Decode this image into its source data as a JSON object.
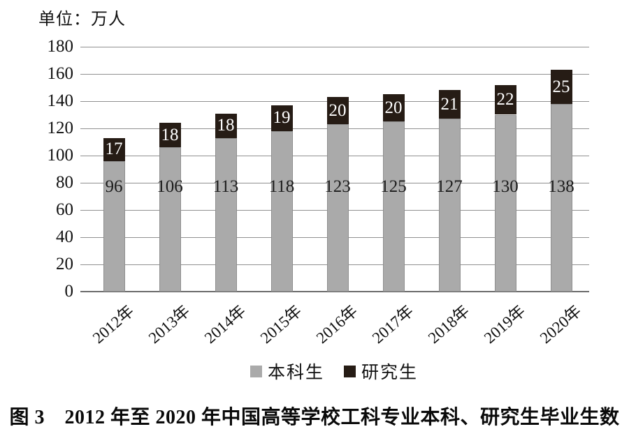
{
  "figure": {
    "unit_label": "单位：万人",
    "caption": "图 3　2012 年至 2020 年中国高等学校工科专业本科、研究生毕业生数"
  },
  "chart_data": {
    "type": "stacked-bar",
    "title": "",
    "xlabel": "",
    "ylabel": "单位：万人",
    "categories": [
      "2012年",
      "2013年",
      "2014年",
      "2015年",
      "2016年",
      "2017年",
      "2018年",
      "2019年",
      "2020年"
    ],
    "series": [
      {
        "name": "本科生",
        "values": [
          96,
          106,
          113,
          118,
          123,
          125,
          127,
          130,
          138
        ],
        "color": "#aaaaaa",
        "label_color": "#1c1c1c"
      },
      {
        "name": "研究生",
        "values": [
          17,
          18,
          18,
          19,
          20,
          20,
          21,
          22,
          25
        ],
        "color": "#261c15",
        "label_color": "#ffffff"
      }
    ],
    "ylim": [
      0,
      180
    ],
    "ytick_step": 20,
    "grid": true,
    "gridline_color": "#909090",
    "axis_color": "#6b6b6b",
    "legend_position": "bottom"
  }
}
